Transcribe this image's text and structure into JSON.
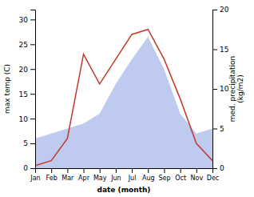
{
  "chart_data": {
    "type": "line",
    "x_label": "date (month)",
    "y_label": "max temp (C)",
    "y2_label": "med. precipitation\n(kg/m2)",
    "categories": [
      "Jan",
      "Feb",
      "Mar",
      "Apr",
      "May",
      "Jun",
      "Jul",
      "Aug",
      "Sep",
      "Oct",
      "Nov",
      "Dec"
    ],
    "series": [
      {
        "type": "area",
        "color": "#b8c4ef",
        "values": [
          6.0,
          7.0,
          8.0,
          9.0,
          11.0,
          17.0,
          22.0,
          26.5,
          20.0,
          11.0,
          7.0,
          8.0
        ]
      },
      {
        "type": "line",
        "color": "#c0392b",
        "values": [
          0.5,
          1.5,
          6.0,
          23.0,
          17.0,
          22.0,
          27.0,
          28.0,
          22.0,
          14.0,
          5.0,
          1.5
        ]
      }
    ],
    "ylim": [
      0,
      32
    ],
    "yticks": [
      0,
      5,
      10,
      15,
      20,
      25,
      30
    ],
    "y2lim": [
      0,
      20
    ],
    "y2ticks": [
      0,
      5,
      10,
      15,
      20
    ],
    "grid": false
  }
}
